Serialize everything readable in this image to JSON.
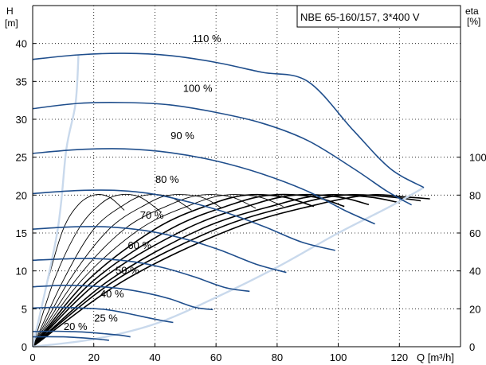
{
  "chart_data": {
    "type": "line",
    "title": "NBE 65-160/157, 3*400 V",
    "y_label_line1": "H",
    "y_label_line2": "[m]",
    "x_label": "Q [m³/h]",
    "y2_label_line1": "eta",
    "y2_label_line2": "[%]",
    "xlim": [
      0,
      140
    ],
    "ylim": [
      0,
      45
    ],
    "x_ticks": [
      "0",
      "20",
      "40",
      "60",
      "80",
      "100",
      "120"
    ],
    "y_ticks": [
      "0",
      "5",
      "10",
      "15",
      "20",
      "25",
      "30",
      "35",
      "40"
    ],
    "y2_ticks": [
      "0",
      "20",
      "40",
      "60",
      "80",
      "100"
    ],
    "grid": true,
    "colors": {
      "speed_curve": "#1f4e8c",
      "system_curve": "#c9d9ec",
      "efficiency_curve": "#000000",
      "grid": "#000000"
    },
    "speed_curves": [
      {
        "name": "110 %",
        "label_at": [
          57,
          40.2
        ],
        "points": [
          [
            0,
            37.9
          ],
          [
            15,
            38.5
          ],
          [
            30,
            38.7
          ],
          [
            45,
            38.4
          ],
          [
            60,
            37.5
          ],
          [
            75,
            36.2
          ],
          [
            90,
            35.0
          ],
          [
            105,
            28.5
          ],
          [
            117,
            23.5
          ],
          [
            128,
            21.0
          ]
        ]
      },
      {
        "name": "100 %",
        "label_at": [
          54,
          33.6
        ],
        "points": [
          [
            0,
            31.4
          ],
          [
            15,
            32.1
          ],
          [
            30,
            32.2
          ],
          [
            45,
            31.9
          ],
          [
            60,
            30.9
          ],
          [
            75,
            29.5
          ],
          [
            90,
            27.2
          ],
          [
            105,
            23.5
          ],
          [
            116,
            20.5
          ],
          [
            124,
            18.7
          ]
        ]
      },
      {
        "name": "90 %",
        "label_at": [
          49,
          27.4
        ],
        "points": [
          [
            0,
            25.5
          ],
          [
            15,
            26.0
          ],
          [
            30,
            26.1
          ],
          [
            45,
            25.6
          ],
          [
            60,
            24.5
          ],
          [
            75,
            22.8
          ],
          [
            90,
            20.5
          ],
          [
            102,
            18.0
          ],
          [
            112,
            16.2
          ]
        ]
      },
      {
        "name": "80 %",
        "label_at": [
          44,
          21.6
        ],
        "points": [
          [
            0,
            20.2
          ],
          [
            15,
            20.6
          ],
          [
            28,
            20.6
          ],
          [
            40,
            20.1
          ],
          [
            52,
            19.0
          ],
          [
            64,
            17.6
          ],
          [
            76,
            15.8
          ],
          [
            88,
            13.8
          ],
          [
            99,
            12.7
          ]
        ]
      },
      {
        "name": "70 %",
        "label_at": [
          39,
          16.9
        ],
        "points": [
          [
            0,
            15.5
          ],
          [
            12,
            15.8
          ],
          [
            25,
            15.8
          ],
          [
            37,
            15.3
          ],
          [
            49,
            14.3
          ],
          [
            61,
            12.8
          ],
          [
            73,
            10.9
          ],
          [
            83,
            9.8
          ]
        ]
      },
      {
        "name": "60 %",
        "label_at": [
          35,
          12.9
        ],
        "points": [
          [
            0,
            11.4
          ],
          [
            12,
            11.6
          ],
          [
            22,
            11.6
          ],
          [
            33,
            11.2
          ],
          [
            43,
            10.4
          ],
          [
            53,
            9.2
          ],
          [
            63,
            7.8
          ],
          [
            71,
            7.3
          ]
        ]
      },
      {
        "name": "50 %",
        "label_at": [
          31,
          9.6
        ],
        "points": [
          [
            0,
            7.9
          ],
          [
            10,
            8.1
          ],
          [
            19,
            8.0
          ],
          [
            28,
            7.7
          ],
          [
            37,
            7.1
          ],
          [
            45,
            6.3
          ],
          [
            53,
            5.2
          ],
          [
            59,
            4.9
          ]
        ]
      },
      {
        "name": "40 %",
        "label_at": [
          26,
          6.5
        ],
        "points": [
          [
            0,
            5.1
          ],
          [
            8,
            5.2
          ],
          [
            16,
            5.1
          ],
          [
            24,
            4.9
          ],
          [
            31,
            4.4
          ],
          [
            38,
            3.8
          ],
          [
            43,
            3.4
          ],
          [
            46,
            3.2
          ]
        ]
      },
      {
        "name": "25 %",
        "label_at": [
          24,
          3.3
        ],
        "points": [
          [
            0,
            2.0
          ],
          [
            6,
            2.05
          ],
          [
            12,
            2.0
          ],
          [
            18,
            1.9
          ],
          [
            24,
            1.7
          ],
          [
            29,
            1.5
          ],
          [
            32,
            1.3
          ]
        ]
      },
      {
        "name": "20 %",
        "label_at": [
          14,
          2.2
        ],
        "points": [
          [
            0,
            1.3
          ],
          [
            5,
            1.32
          ],
          [
            10,
            1.3
          ],
          [
            15,
            1.2
          ],
          [
            20,
            1.05
          ],
          [
            25,
            0.85
          ]
        ]
      }
    ],
    "system_curves": [
      {
        "points": [
          [
            0,
            0
          ],
          [
            8,
            15
          ],
          [
            11,
            26
          ],
          [
            14,
            32
          ],
          [
            15,
            38.5
          ]
        ]
      },
      {
        "points": [
          [
            0,
            0
          ],
          [
            20,
            1
          ],
          [
            40,
            3
          ],
          [
            60,
            6.5
          ],
          [
            80,
            10.5
          ],
          [
            100,
            15
          ],
          [
            117,
            18.5
          ],
          [
            128,
            21
          ]
        ]
      }
    ],
    "efficiency_curves": [
      {
        "points": [
          [
            0,
            0
          ],
          [
            5,
            35
          ],
          [
            10,
            62
          ],
          [
            15,
            75
          ],
          [
            20,
            80
          ],
          [
            25,
            79
          ],
          [
            30,
            72
          ]
        ]
      },
      {
        "points": [
          [
            0,
            0
          ],
          [
            7,
            35
          ],
          [
            15,
            62
          ],
          [
            22,
            75
          ],
          [
            28,
            80
          ],
          [
            35,
            79
          ],
          [
            42,
            71
          ]
        ]
      },
      {
        "points": [
          [
            0,
            0
          ],
          [
            10,
            35
          ],
          [
            20,
            62
          ],
          [
            30,
            75
          ],
          [
            37,
            80
          ],
          [
            45,
            79
          ],
          [
            52,
            72
          ]
        ]
      },
      {
        "points": [
          [
            0,
            0
          ],
          [
            12,
            35
          ],
          [
            25,
            62
          ],
          [
            37,
            75
          ],
          [
            45,
            80
          ],
          [
            55,
            79
          ],
          [
            62,
            73
          ]
        ]
      },
      {
        "points": [
          [
            0,
            0
          ],
          [
            14,
            35
          ],
          [
            30,
            62
          ],
          [
            45,
            75
          ],
          [
            55,
            80
          ],
          [
            65,
            79
          ],
          [
            73,
            73
          ]
        ]
      },
      {
        "points": [
          [
            0,
            0
          ],
          [
            16,
            35
          ],
          [
            35,
            62
          ],
          [
            52,
            75
          ],
          [
            63,
            80
          ],
          [
            74,
            79
          ],
          [
            82,
            74
          ]
        ]
      },
      {
        "points": [
          [
            0,
            0
          ],
          [
            18,
            35
          ],
          [
            40,
            62
          ],
          [
            58,
            75
          ],
          [
            70,
            80
          ],
          [
            82,
            79
          ],
          [
            92,
            74
          ]
        ]
      },
      {
        "points": [
          [
            0,
            0
          ],
          [
            20,
            35
          ],
          [
            45,
            62
          ],
          [
            65,
            75
          ],
          [
            78,
            80
          ],
          [
            92,
            79
          ],
          [
            102,
            74
          ]
        ]
      },
      {
        "points": [
          [
            0,
            0
          ],
          [
            22,
            35
          ],
          [
            50,
            62
          ],
          [
            72,
            75
          ],
          [
            86,
            80
          ],
          [
            100,
            79
          ],
          [
            110,
            75
          ]
        ]
      },
      {
        "points": [
          [
            0,
            0
          ],
          [
            25,
            35
          ],
          [
            55,
            62
          ],
          [
            80,
            75
          ],
          [
            95,
            80
          ],
          [
            110,
            79
          ],
          [
            120,
            76
          ]
        ]
      },
      {
        "points": [
          [
            0,
            0
          ],
          [
            27,
            35
          ],
          [
            60,
            62
          ],
          [
            86,
            75
          ],
          [
            102,
            80
          ],
          [
            117,
            79
          ],
          [
            127,
            77
          ]
        ]
      },
      {
        "points": [
          [
            0,
            0
          ],
          [
            30,
            35
          ],
          [
            65,
            62
          ],
          [
            93,
            75
          ],
          [
            110,
            80
          ],
          [
            122,
            79
          ],
          [
            130,
            78
          ]
        ]
      }
    ]
  }
}
